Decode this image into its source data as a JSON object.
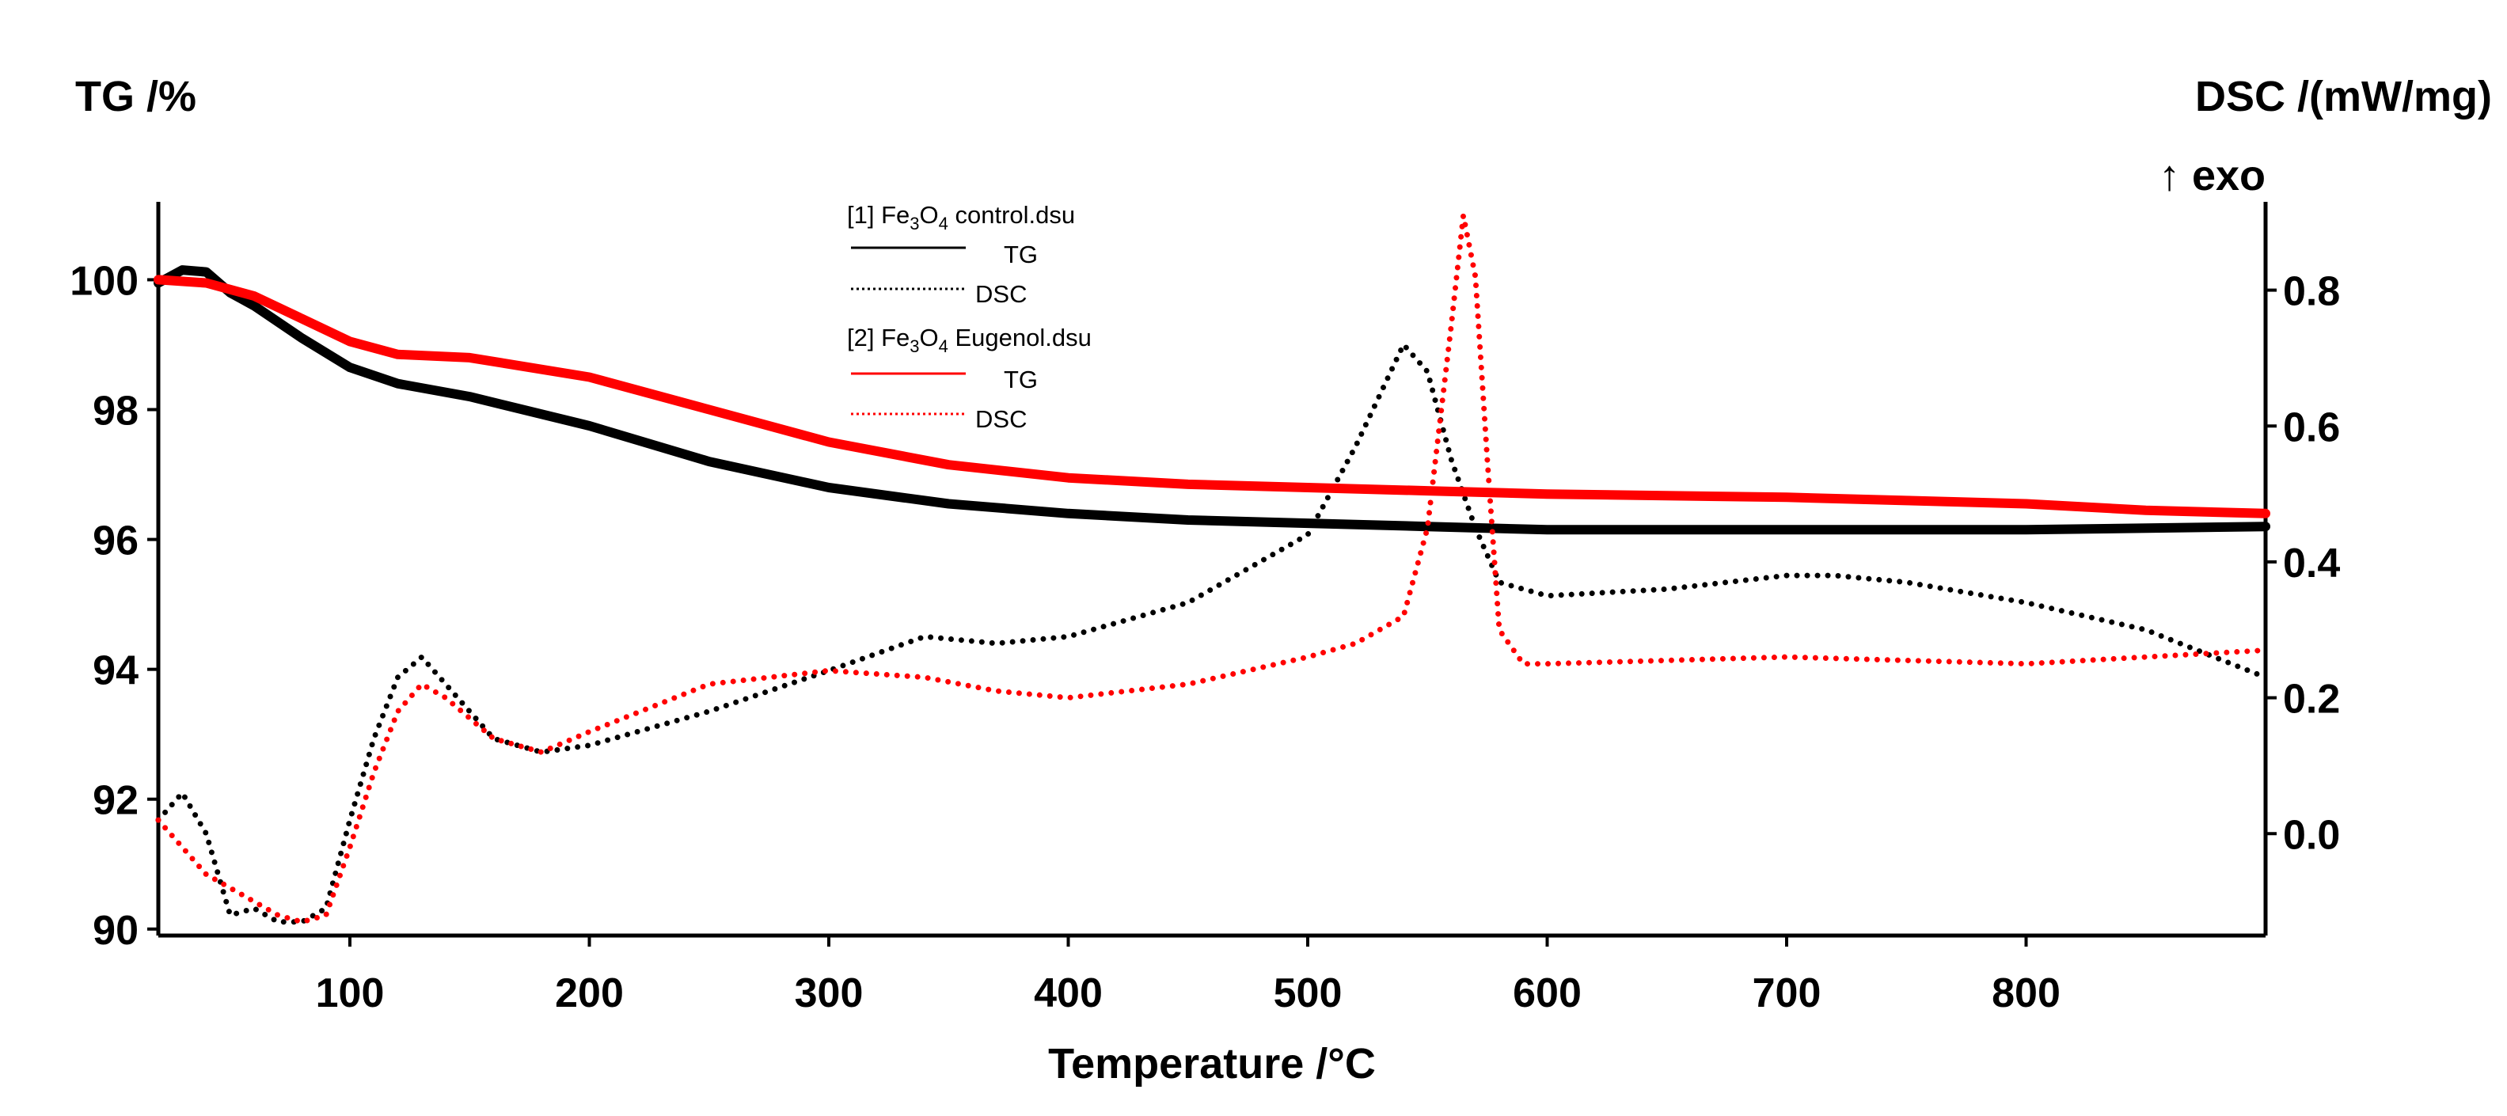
{
  "chart_data": {
    "type": "line",
    "title": "",
    "xlabel": "Temperature /°C",
    "ylabel_left": "TG /%",
    "ylabel_right": "DSC /(mW/mg)",
    "ylabel_right_note": "↑ exo",
    "xlim": [
      20,
      900
    ],
    "ylim_left": [
      89.9,
      101.2
    ],
    "ylim_right": [
      -0.15,
      0.93
    ],
    "x_ticks": [
      100,
      200,
      300,
      400,
      500,
      600,
      700,
      800
    ],
    "y_left_ticks": [
      90,
      92,
      94,
      96,
      98,
      100
    ],
    "y_right_ticks": [
      0.0,
      0.2,
      0.4,
      0.6,
      0.8
    ],
    "y_right_tick_labels": [
      "0.0",
      "0.2",
      "0.4",
      "0.6",
      "0.8"
    ],
    "legend": {
      "position": "top-center",
      "groups": [
        {
          "pre": "[1] Fe",
          "sub1": "3",
          "mid": "O",
          "sub2": "4",
          "post": " control.dsu",
          "tg": "TG",
          "dsc": "DSC",
          "color": "#000000"
        },
        {
          "pre": "[2] Fe",
          "sub1": "3",
          "mid": "O",
          "sub2": "4",
          "post": " Eugenol.dsu",
          "tg": "TG",
          "dsc": "DSC",
          "color": "#ff0000"
        }
      ]
    },
    "series": [
      {
        "name": "[1] Fe3O4 control TG",
        "axis": "left",
        "style": "solid",
        "color": "#000000",
        "x": [
          20,
          30,
          40,
          50,
          60,
          80,
          100,
          120,
          150,
          200,
          250,
          300,
          350,
          400,
          450,
          500,
          550,
          600,
          700,
          800,
          900
        ],
        "y": [
          99.95,
          100.15,
          100.12,
          99.8,
          99.6,
          99.1,
          98.65,
          98.4,
          98.2,
          97.75,
          97.2,
          96.8,
          96.55,
          96.4,
          96.3,
          96.25,
          96.2,
          96.15,
          96.15,
          96.15,
          96.2
        ]
      },
      {
        "name": "[1] Fe3O4 control DSC",
        "axis": "right",
        "style": "dotted",
        "color": "#000000",
        "x": [
          20,
          30,
          40,
          50,
          60,
          70,
          80,
          90,
          100,
          110,
          120,
          130,
          140,
          160,
          180,
          200,
          250,
          300,
          340,
          370,
          400,
          450,
          500,
          520,
          540,
          550,
          560,
          570,
          580,
          600,
          650,
          700,
          720,
          750,
          800,
          850,
          900
        ],
        "y": [
          0.02,
          0.06,
          0.0,
          -0.12,
          -0.11,
          -0.13,
          -0.13,
          -0.11,
          0.02,
          0.14,
          0.23,
          0.26,
          0.22,
          0.14,
          0.12,
          0.13,
          0.18,
          0.24,
          0.29,
          0.28,
          0.29,
          0.34,
          0.44,
          0.57,
          0.72,
          0.68,
          0.55,
          0.45,
          0.37,
          0.35,
          0.36,
          0.38,
          0.38,
          0.37,
          0.34,
          0.3,
          0.23
        ]
      },
      {
        "name": "[2] Fe3O4 Eugenol TG",
        "axis": "left",
        "style": "solid",
        "color": "#ff0000",
        "x": [
          20,
          40,
          60,
          80,
          100,
          120,
          150,
          200,
          250,
          300,
          350,
          400,
          450,
          500,
          550,
          600,
          700,
          750,
          800,
          850,
          900
        ],
        "y": [
          100.0,
          99.95,
          99.75,
          99.4,
          99.05,
          98.85,
          98.8,
          98.5,
          98.0,
          97.5,
          97.15,
          96.95,
          96.85,
          96.8,
          96.75,
          96.7,
          96.65,
          96.6,
          96.55,
          96.45,
          96.4
        ]
      },
      {
        "name": "[2] Fe3O4 Eugenol DSC",
        "axis": "right",
        "style": "dotted",
        "color": "#ff0000",
        "x": [
          20,
          30,
          40,
          50,
          60,
          70,
          80,
          90,
          100,
          110,
          120,
          130,
          140,
          160,
          180,
          200,
          250,
          300,
          340,
          370,
          400,
          450,
          500,
          520,
          540,
          550,
          560,
          565,
          570,
          575,
          580,
          590,
          600,
          700,
          800,
          900
        ],
        "y": [
          0.02,
          -0.02,
          -0.06,
          -0.08,
          -0.1,
          -0.12,
          -0.13,
          -0.12,
          -0.02,
          0.09,
          0.18,
          0.22,
          0.2,
          0.14,
          0.12,
          0.15,
          0.22,
          0.24,
          0.23,
          0.21,
          0.2,
          0.22,
          0.26,
          0.28,
          0.32,
          0.45,
          0.75,
          0.91,
          0.82,
          0.55,
          0.3,
          0.25,
          0.25,
          0.26,
          0.25,
          0.27
        ]
      }
    ]
  }
}
